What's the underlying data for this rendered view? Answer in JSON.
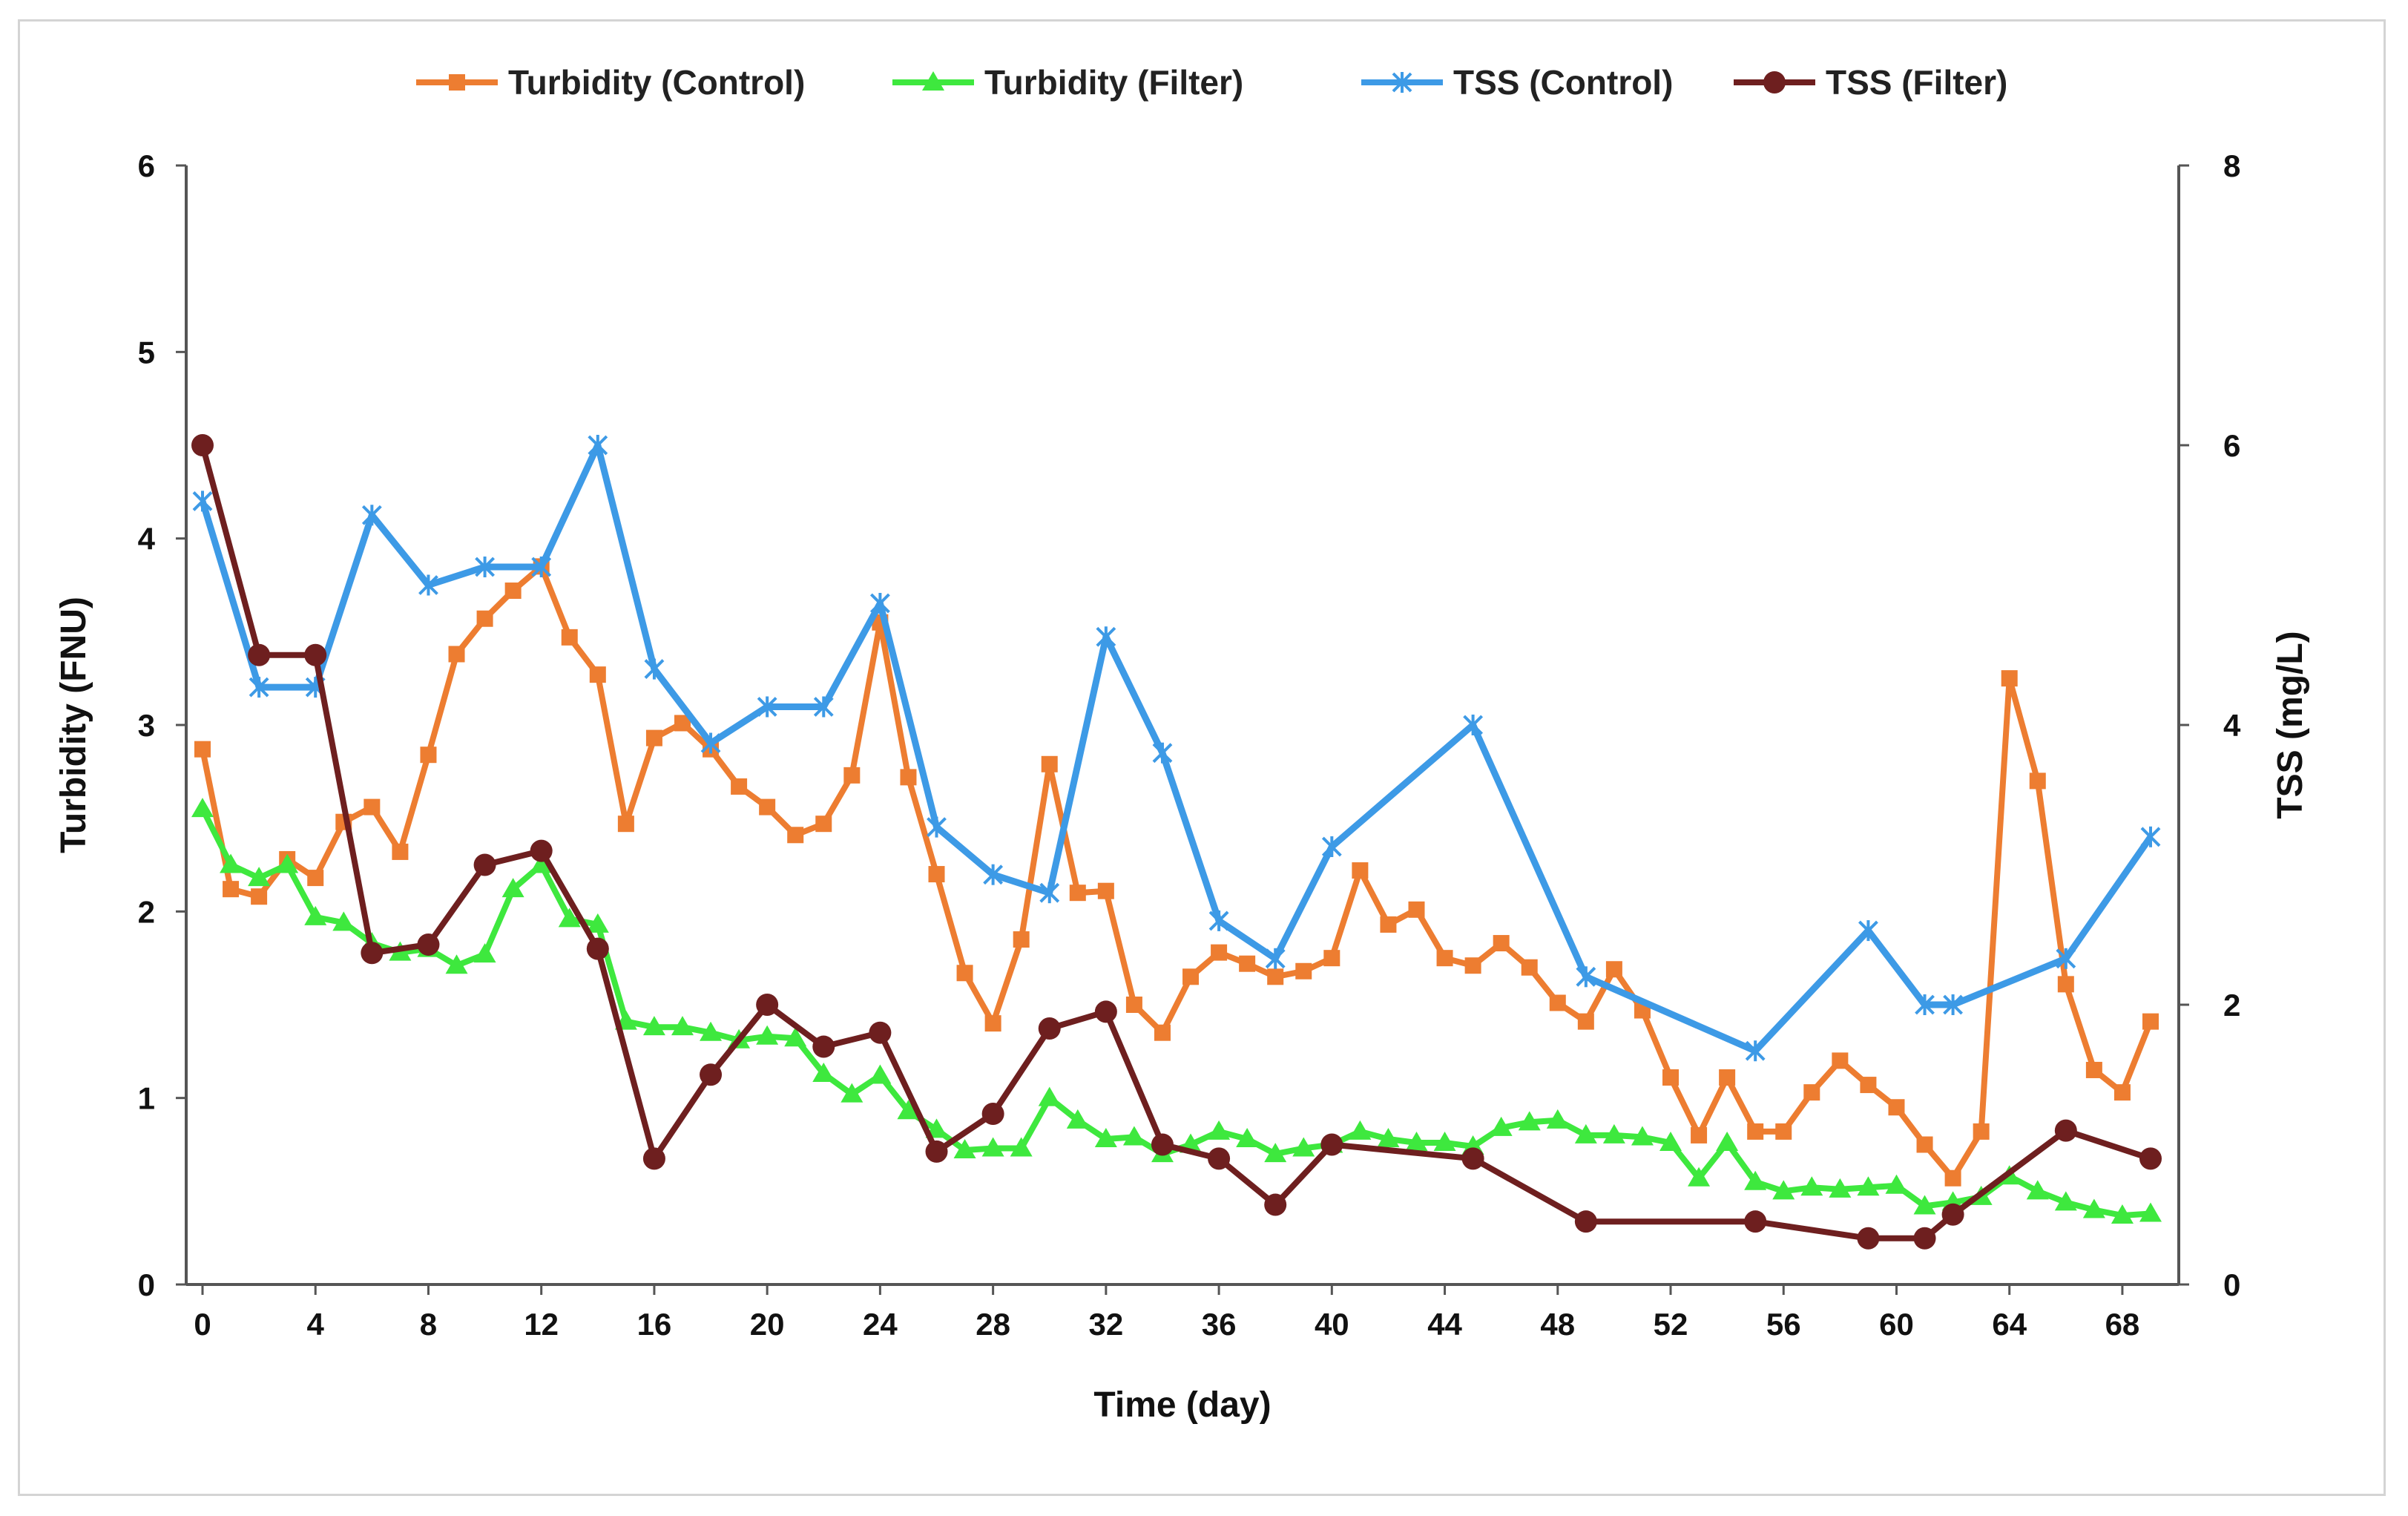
{
  "chart_data": {
    "type": "line",
    "title": "",
    "xlabel": "Time (day)",
    "ylabel_left": "Turbidity (FNU)",
    "ylabel_right": "TSS (mg/L)",
    "xlim": [
      0,
      69
    ],
    "ylim_left": [
      0,
      6
    ],
    "ylim_right": [
      0,
      8
    ],
    "x_ticks": [
      "0",
      "4",
      "8",
      "12",
      "16",
      "20",
      "24",
      "28",
      "32",
      "36",
      "40",
      "44",
      "48",
      "52",
      "56",
      "60",
      "64",
      "68"
    ],
    "y_left_ticks": [
      "0",
      "1",
      "2",
      "3",
      "4",
      "5",
      "6"
    ],
    "y_right_ticks": [
      "0",
      "2",
      "4",
      "6",
      "8"
    ],
    "grid": false,
    "legend_position": "top",
    "series": [
      {
        "name": "Turbidity (Control)",
        "axis": "left",
        "color": "#ed7d31",
        "marker": "square",
        "x": [
          0,
          1,
          2,
          3,
          4,
          5,
          6,
          7,
          8,
          9,
          10,
          11,
          12,
          13,
          14,
          15,
          16,
          17,
          18,
          19,
          20,
          21,
          22,
          23,
          24,
          25,
          26,
          27,
          28,
          29,
          30,
          31,
          32,
          33,
          34,
          35,
          36,
          37,
          38,
          39,
          40,
          41,
          42,
          43,
          44,
          45,
          46,
          47,
          48,
          49,
          50,
          51,
          52,
          53,
          54,
          55,
          56,
          57,
          58,
          59,
          60,
          61,
          62,
          63,
          64,
          65,
          66,
          67,
          68,
          69
        ],
        "values": [
          2.87,
          2.12,
          2.08,
          2.28,
          2.18,
          2.48,
          2.56,
          2.32,
          2.84,
          3.38,
          3.57,
          3.72,
          3.85,
          3.47,
          3.27,
          2.47,
          2.93,
          3.01,
          2.87,
          2.67,
          2.56,
          2.41,
          2.47,
          2.73,
          3.55,
          2.72,
          2.2,
          1.67,
          1.4,
          1.85,
          2.79,
          2.1,
          2.11,
          1.5,
          1.35,
          1.65,
          1.78,
          1.72,
          1.65,
          1.68,
          1.75,
          2.22,
          1.93,
          2.01,
          1.75,
          1.71,
          1.83,
          1.7,
          1.51,
          1.41,
          1.69,
          1.47,
          1.11,
          0.8,
          1.11,
          0.82,
          0.82,
          1.03,
          1.2,
          1.07,
          0.95,
          0.75,
          0.57,
          0.82,
          3.25,
          2.7,
          1.61,
          1.15,
          1.03,
          1.41
        ]
      },
      {
        "name": "Turbidity (Filter)",
        "axis": "left",
        "color": "#3ee83e",
        "marker": "triangle",
        "x": [
          0,
          1,
          2,
          3,
          4,
          5,
          6,
          7,
          8,
          9,
          10,
          11,
          12,
          13,
          14,
          15,
          16,
          17,
          18,
          19,
          20,
          21,
          22,
          23,
          24,
          25,
          26,
          27,
          28,
          29,
          30,
          31,
          32,
          33,
          34,
          35,
          36,
          37,
          38,
          39,
          40,
          41,
          42,
          43,
          44,
          45,
          46,
          47,
          48,
          49,
          50,
          51,
          52,
          53,
          54,
          55,
          56,
          57,
          58,
          59,
          60,
          61,
          62,
          63,
          64,
          65,
          66,
          67,
          68,
          69
        ],
        "values": [
          2.55,
          2.25,
          2.18,
          2.25,
          1.97,
          1.94,
          1.83,
          1.78,
          1.8,
          1.71,
          1.77,
          2.12,
          2.25,
          1.96,
          1.93,
          1.41,
          1.38,
          1.38,
          1.35,
          1.31,
          1.33,
          1.32,
          1.13,
          1.02,
          1.12,
          0.93,
          0.83,
          0.72,
          0.73,
          0.73,
          1.0,
          0.88,
          0.78,
          0.79,
          0.7,
          0.75,
          0.82,
          0.78,
          0.7,
          0.73,
          0.75,
          0.82,
          0.78,
          0.76,
          0.76,
          0.74,
          0.84,
          0.87,
          0.88,
          0.8,
          0.8,
          0.79,
          0.76,
          0.57,
          0.76,
          0.55,
          0.5,
          0.52,
          0.51,
          0.52,
          0.53,
          0.42,
          0.44,
          0.47,
          0.58,
          0.5,
          0.44,
          0.4,
          0.37,
          0.38
        ]
      },
      {
        "name": "TSS (Control)",
        "axis": "right",
        "color": "#3d9ae6",
        "marker": "star",
        "x": [
          0,
          2,
          4,
          6,
          8,
          10,
          12,
          14,
          16,
          18,
          20,
          22,
          24,
          26,
          28,
          30,
          32,
          34,
          36,
          38,
          40,
          45,
          49,
          55,
          59,
          61,
          62,
          66,
          69
        ],
        "values": [
          5.6,
          4.27,
          4.27,
          5.5,
          5.0,
          5.13,
          5.13,
          6.0,
          4.4,
          3.87,
          4.13,
          4.13,
          4.87,
          3.27,
          2.93,
          2.8,
          4.63,
          3.8,
          2.6,
          2.33,
          3.13,
          4.0,
          2.2,
          1.67,
          2.53,
          2.0,
          2.0,
          2.33,
          3.2
        ]
      },
      {
        "name": "TSS (Filter)",
        "axis": "right",
        "color": "#6e1f1f",
        "marker": "circle",
        "x": [
          0,
          2,
          4,
          6,
          8,
          10,
          12,
          14,
          16,
          18,
          20,
          22,
          24,
          26,
          28,
          30,
          32,
          34,
          36,
          38,
          40,
          45,
          49,
          55,
          59,
          61,
          62,
          66,
          69
        ],
        "values": [
          6.0,
          4.5,
          4.5,
          2.37,
          2.43,
          3.0,
          3.1,
          2.4,
          0.9,
          1.5,
          2.0,
          1.7,
          1.8,
          0.95,
          1.22,
          1.83,
          1.95,
          1.0,
          0.9,
          0.57,
          1.0,
          0.9,
          0.45,
          0.45,
          0.33,
          0.33,
          0.5,
          1.1,
          0.9
        ]
      }
    ]
  }
}
